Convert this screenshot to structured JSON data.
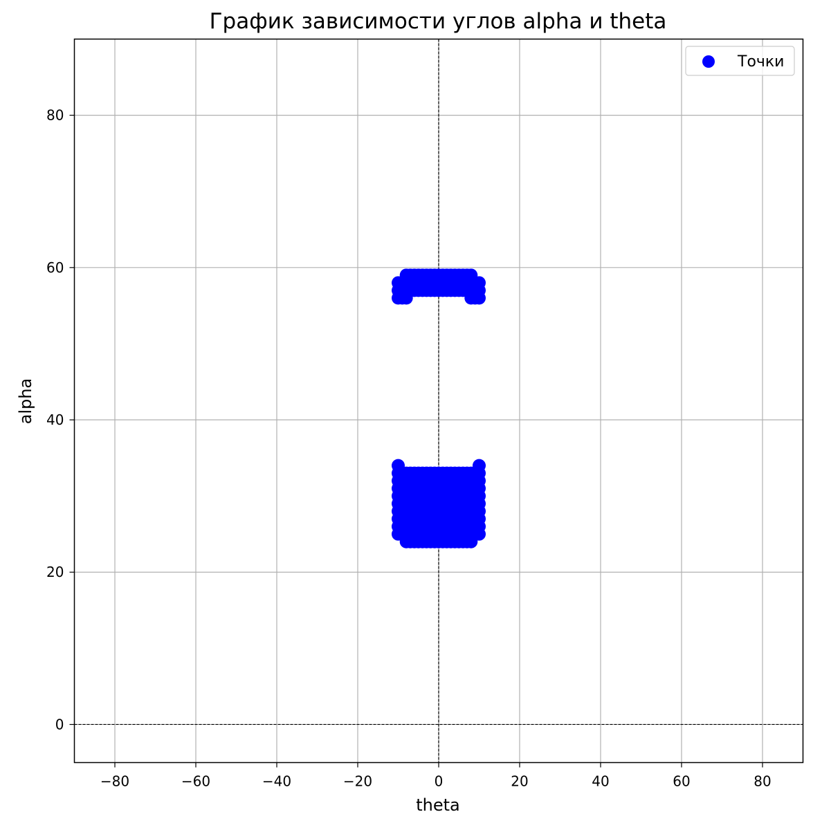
{
  "chart_data": {
    "type": "scatter",
    "title": "График зависимости углов alpha и theta",
    "xlabel": "theta",
    "ylabel": "alpha",
    "xlim": [
      -90,
      90
    ],
    "ylim": [
      -5,
      90
    ],
    "xticks": [
      -80,
      -60,
      -40,
      -20,
      0,
      20,
      40,
      60,
      80
    ],
    "yticks": [
      0,
      20,
      40,
      60,
      80
    ],
    "xtick_labels": [
      "−80",
      "−60",
      "−40",
      "−20",
      "0",
      "20",
      "40",
      "60",
      "80"
    ],
    "ytick_labels": [
      "0",
      "20",
      "40",
      "60",
      "80"
    ],
    "grid": true,
    "reference_lines": {
      "x": 0,
      "y": 0,
      "style": "dashed"
    },
    "legend": {
      "position": "top-right",
      "entries": [
        "Точки"
      ]
    },
    "colors": {
      "points": "#0000ff",
      "grid": "#b0b0b0",
      "reference": "#000000"
    },
    "series": [
      {
        "name": "Точки",
        "clusters": [
          {
            "rows": [
              {
                "alpha": 59,
                "theta_min": -8,
                "theta_max": 8
              },
              {
                "alpha": 58,
                "theta_min": -10,
                "theta_max": 10
              },
              {
                "alpha": 57,
                "theta_min": -10,
                "theta_max": 10
              },
              {
                "alpha": 56,
                "theta_min": -10,
                "theta_max": -8
              },
              {
                "alpha": 56,
                "theta_min": 8,
                "theta_max": 10
              }
            ]
          },
          {
            "rows": [
              {
                "alpha": 34,
                "theta_min": -10,
                "theta_max": -10
              },
              {
                "alpha": 34,
                "theta_min": 10,
                "theta_max": 10
              },
              {
                "alpha": 33,
                "theta_min": -10,
                "theta_max": 10
              },
              {
                "alpha": 32,
                "theta_min": -10,
                "theta_max": 10
              },
              {
                "alpha": 31,
                "theta_min": -10,
                "theta_max": 10
              },
              {
                "alpha": 30,
                "theta_min": -10,
                "theta_max": 10
              },
              {
                "alpha": 29,
                "theta_min": -10,
                "theta_max": 10
              },
              {
                "alpha": 28,
                "theta_min": -10,
                "theta_max": 10
              },
              {
                "alpha": 27,
                "theta_min": -10,
                "theta_max": 10
              },
              {
                "alpha": 26,
                "theta_min": -10,
                "theta_max": 10
              },
              {
                "alpha": 25,
                "theta_min": -10,
                "theta_max": 10
              },
              {
                "alpha": 24,
                "theta_min": -8,
                "theta_max": 8
              }
            ]
          }
        ]
      }
    ]
  }
}
